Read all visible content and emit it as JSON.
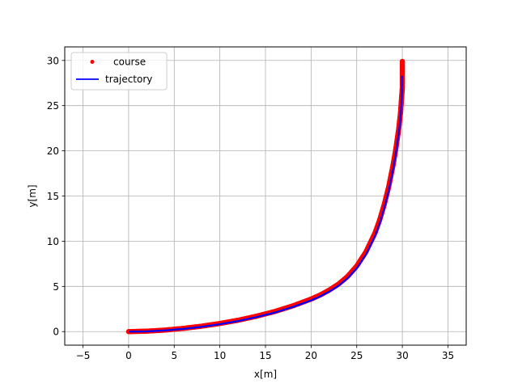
{
  "chart_data": {
    "type": "line",
    "title": "",
    "xlabel": "x[m]",
    "ylabel": "y[m]",
    "xlim": [
      -7.0,
      37.0
    ],
    "ylim": [
      -1.5,
      31.5
    ],
    "xticks": [
      -5,
      0,
      5,
      10,
      15,
      20,
      25,
      30,
      35
    ],
    "yticks": [
      0,
      5,
      10,
      15,
      20,
      25,
      30
    ],
    "xtick_labels": [
      "−5",
      "0",
      "5",
      "10",
      "15",
      "20",
      "25",
      "30",
      "35"
    ],
    "ytick_labels": [
      "0",
      "5",
      "10",
      "15",
      "20",
      "25",
      "30"
    ],
    "grid": true,
    "legend": {
      "position": "top-left",
      "entries": [
        "course",
        "trajectory"
      ]
    },
    "series": [
      {
        "name": "course",
        "style": "markers",
        "color": "#ff0000",
        "x": [
          0,
          2,
          4,
          6,
          8,
          10,
          12,
          14,
          16,
          18,
          20,
          21,
          22,
          23,
          24,
          25,
          26,
          27,
          27.5,
          28,
          28.5,
          29,
          29.3,
          29.6,
          29.8,
          29.9,
          30,
          30,
          30
        ],
        "y": [
          0,
          0.05,
          0.17,
          0.36,
          0.6,
          0.9,
          1.26,
          1.7,
          2.22,
          2.85,
          3.6,
          4.05,
          4.6,
          5.25,
          6.1,
          7.25,
          8.8,
          10.9,
          12.3,
          14.0,
          16.0,
          18.5,
          20.3,
          22.4,
          24.2,
          25.6,
          27.0,
          28.5,
          29.9
        ]
      },
      {
        "name": "trajectory",
        "style": "line",
        "color": "#0000ff",
        "x": [
          0,
          2,
          4,
          6,
          8,
          10,
          12,
          14,
          16,
          18,
          20,
          21,
          22,
          23,
          24,
          25,
          26,
          27,
          27.5,
          28,
          28.5,
          29,
          29.3,
          29.6,
          29.8,
          29.9,
          29.95,
          29.95
        ],
        "y": [
          0,
          0.02,
          0.13,
          0.3,
          0.53,
          0.82,
          1.17,
          1.6,
          2.1,
          2.72,
          3.45,
          3.9,
          4.43,
          5.07,
          5.9,
          7.0,
          8.5,
          10.55,
          11.9,
          13.6,
          15.55,
          18.0,
          19.8,
          21.9,
          23.7,
          25.2,
          26.6,
          28.3
        ]
      }
    ]
  }
}
